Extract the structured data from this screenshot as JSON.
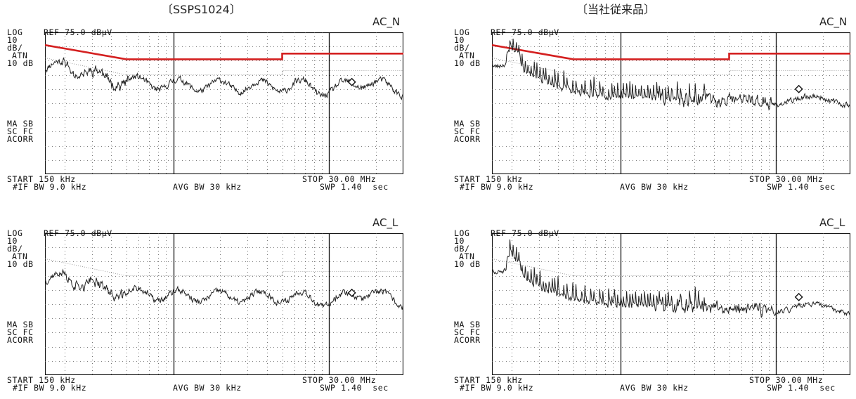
{
  "columns": [
    {
      "title": "〔SSPS1024〕"
    },
    {
      "title": "〔当社従来品〕"
    }
  ],
  "screen_labels": {
    "log": "LOG",
    "ref": "REF 75.0 dBμV",
    "scale_value": "10",
    "scale_unit": "dB/",
    "atn": "ATN",
    "atn_value": "10 dB",
    "ma_sb": "MA SB",
    "sc_fc": "SC FC",
    "acorr": "ACORR",
    "start": "START 150 kHz",
    "if_bw": "#IF BW 9.0 kHz",
    "avg_bw": "AVG BW 30 kHz",
    "stop": "STOP 30.00 MHz",
    "swp": "SWP 1.40  sec"
  },
  "colors": {
    "limit_line": "#d42020",
    "trace": "#222222",
    "grid": "#555555"
  },
  "chart_data": [
    {
      "type": "line",
      "product": "〔SSPS1024〕",
      "trace": "AC_N",
      "xlim_MHz": [
        0.15,
        30.0
      ],
      "ylim_dBuV": [
        -25,
        75
      ],
      "x_divisions": 10,
      "y_divisions": 10,
      "grid": true,
      "limit_line": {
        "type": "step",
        "x": [
          0.15,
          0.5,
          0.5,
          5.0,
          5.0,
          30.0
        ],
        "y": [
          66,
          56,
          56,
          56,
          60,
          60
        ]
      },
      "emission": {
        "level": "low",
        "peak_at_start": 54,
        "plateau": 37,
        "marker_MHz": 14.0
      },
      "seed": 11
    },
    {
      "type": "line",
      "product": "〔当社従来品〕",
      "trace": "AC_N",
      "xlim_MHz": [
        0.15,
        30.0
      ],
      "ylim_dBuV": [
        -25,
        75
      ],
      "x_divisions": 10,
      "y_divisions": 10,
      "grid": true,
      "limit_line": {
        "type": "step",
        "x": [
          0.15,
          0.5,
          0.5,
          5.0,
          5.0,
          30.0
        ],
        "y": [
          66,
          56,
          56,
          56,
          60,
          60
        ]
      },
      "emission": {
        "level": "harmonic",
        "peak_at_start": 62,
        "plateau": 33,
        "marker_MHz": 14.0
      },
      "seed": 23
    },
    {
      "type": "line",
      "product": "〔SSPS1024〕",
      "trace": "AC_L",
      "xlim_MHz": [
        0.15,
        30.0
      ],
      "ylim_dBuV": [
        -25,
        75
      ],
      "x_divisions": 10,
      "y_divisions": 10,
      "grid": true,
      "limit_line": null,
      "emission": {
        "level": "low",
        "peak_at_start": 46,
        "plateau": 30,
        "marker_MHz": 14.0
      },
      "seed": 37
    },
    {
      "type": "line",
      "product": "〔当社従来品〕",
      "trace": "AC_L",
      "xlim_MHz": [
        0.15,
        30.0
      ],
      "ylim_dBuV": [
        -25,
        75
      ],
      "x_divisions": 10,
      "y_divisions": 10,
      "grid": true,
      "limit_line": null,
      "emission": {
        "level": "harmonic",
        "peak_at_start": 58,
        "plateau": 28,
        "marker_MHz": 14.0
      },
      "seed": 51
    }
  ]
}
